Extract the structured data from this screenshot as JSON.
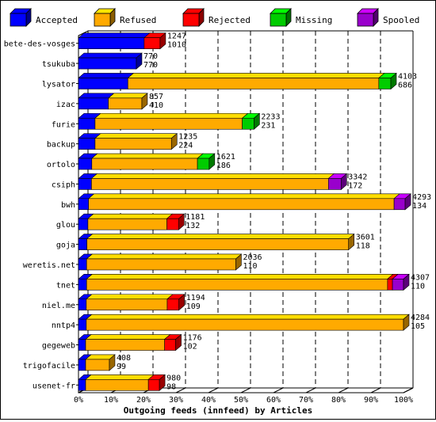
{
  "chart_data": {
    "type": "bar",
    "orientation": "horizontal",
    "stacked": true,
    "title": "Outgoing feeds (innfeed) by Articles",
    "legend": [
      {
        "name": "Accepted",
        "color": "#0000ff"
      },
      {
        "name": "Refused",
        "color": "#ffaa00"
      },
      {
        "name": "Rejected",
        "color": "#ff0000"
      },
      {
        "name": "Missing",
        "color": "#00cc00"
      },
      {
        "name": "Spooled",
        "color": "#9900cc"
      }
    ],
    "xlim": [
      0,
      100
    ],
    "xticks": [
      "0%",
      "10%",
      "20%",
      "30%",
      "40%",
      "50%",
      "60%",
      "70%",
      "80%",
      "90%",
      "100%"
    ],
    "rows": [
      {
        "name": "bete-des-vosges",
        "top_label": "1247",
        "bottom_label": "1010",
        "segments": [
          20.2,
          0,
          4.9,
          0,
          0
        ]
      },
      {
        "name": "tsukuba",
        "top_label": "770",
        "bottom_label": "770",
        "segments": [
          17.8,
          0,
          0,
          0,
          0
        ]
      },
      {
        "name": "lysator",
        "top_label": "4103",
        "bottom_label": "686",
        "segments": [
          15.2,
          77.2,
          0,
          3.7,
          0
        ]
      },
      {
        "name": "izac",
        "top_label": "857",
        "bottom_label": "410",
        "segments": [
          9.2,
          10.3,
          0,
          0,
          0
        ]
      },
      {
        "name": "furie",
        "top_label": "2233",
        "bottom_label": "231",
        "segments": [
          5.1,
          45.3,
          0,
          3.6,
          0
        ]
      },
      {
        "name": "backup",
        "top_label": "1235",
        "bottom_label": "224",
        "segments": [
          5.1,
          23.5,
          0,
          0,
          0
        ]
      },
      {
        "name": "ortolo",
        "top_label": "1621",
        "bottom_label": "186",
        "segments": [
          4.1,
          32.5,
          0,
          3.6,
          0
        ]
      },
      {
        "name": "csiph",
        "top_label": "3342",
        "bottom_label": "172",
        "segments": [
          4.0,
          72.9,
          0,
          0,
          3.9
        ]
      },
      {
        "name": "bwh",
        "top_label": "4293",
        "bottom_label": "134",
        "segments": [
          3.1,
          94.0,
          0,
          0,
          3.4
        ]
      },
      {
        "name": "glou",
        "top_label": "1181",
        "bottom_label": "132",
        "segments": [
          2.9,
          24.3,
          3.6,
          0,
          0
        ]
      },
      {
        "name": "goja",
        "top_label": "3601",
        "bottom_label": "118",
        "segments": [
          2.6,
          80.5,
          0,
          0,
          0
        ]
      },
      {
        "name": "weretis.net",
        "top_label": "2036",
        "bottom_label": "110",
        "segments": [
          2.5,
          45.9,
          0,
          0,
          0
        ]
      },
      {
        "name": "tnet",
        "top_label": "4307",
        "bottom_label": "110",
        "segments": [
          2.5,
          92.6,
          1.5,
          0,
          3.4
        ]
      },
      {
        "name": "niel.me",
        "top_label": "1194",
        "bottom_label": "109",
        "segments": [
          2.4,
          24.9,
          3.6,
          0,
          0
        ]
      },
      {
        "name": "nntp4",
        "top_label": "4284",
        "bottom_label": "105",
        "segments": [
          2.4,
          97.6,
          0,
          0,
          0
        ]
      },
      {
        "name": "gegeweb",
        "top_label": "1176",
        "bottom_label": "102",
        "segments": [
          2.2,
          24.3,
          3.4,
          0,
          0
        ]
      },
      {
        "name": "trigofacile",
        "top_label": "408",
        "bottom_label": "99",
        "segments": [
          2.2,
          7.3,
          0,
          0,
          0
        ]
      },
      {
        "name": "usenet-fr",
        "top_label": "980",
        "bottom_label": "98",
        "segments": [
          2.2,
          19.3,
          3.4,
          0,
          0
        ]
      }
    ]
  }
}
